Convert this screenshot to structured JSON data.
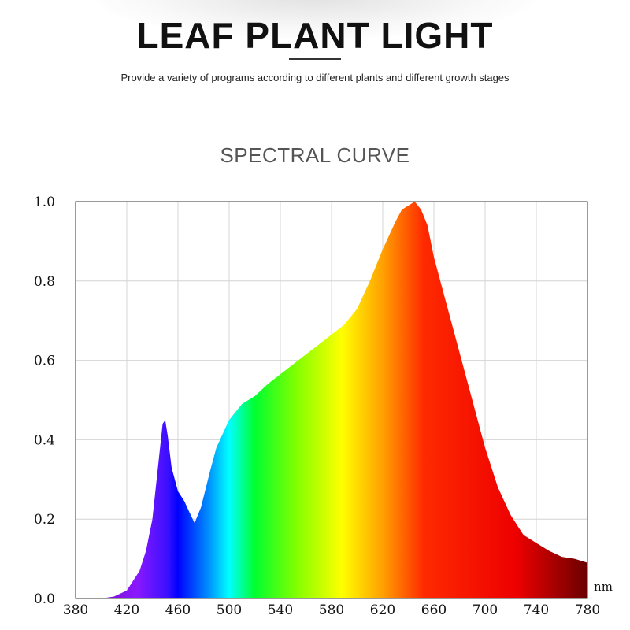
{
  "header": {
    "title": "LEAF PLANT LIGHT",
    "subtitle": "Provide a variety of programs according to different plants and different growth stages"
  },
  "section_title": "SPECTRAL CURVE",
  "chart_data": {
    "type": "area",
    "title": "",
    "xlabel": "",
    "ylabel": "",
    "x_unit": "nm",
    "xlim": [
      380,
      780
    ],
    "ylim": [
      0,
      1.0
    ],
    "grid": true,
    "x_ticks": [
      380,
      420,
      460,
      500,
      540,
      580,
      620,
      660,
      700,
      740,
      780
    ],
    "x_tick_labels": [
      "380",
      "420",
      "460",
      "500",
      "540",
      "580",
      "620",
      "660",
      "700",
      "740",
      "780"
    ],
    "y_ticks": [
      0,
      0.2,
      0.4,
      0.6,
      0.8,
      1.0
    ],
    "y_tick_labels": [
      "0.0",
      "0.2",
      "0.4",
      "0.6",
      "0.8",
      "1.0"
    ],
    "fill": "visible-spectrum gradient",
    "series": [
      {
        "x": [
          380,
          400,
          410,
          420,
          430,
          435,
          440,
          445,
          448,
          450,
          452,
          455,
          460,
          465,
          470,
          473,
          478,
          485,
          490,
          500,
          510,
          520,
          530,
          540,
          550,
          560,
          570,
          580,
          590,
          600,
          610,
          620,
          630,
          635,
          640,
          645,
          650,
          655,
          660,
          670,
          680,
          690,
          700,
          710,
          720,
          730,
          740,
          750,
          760,
          770,
          780
        ],
        "y": [
          0.0,
          0.0,
          0.005,
          0.02,
          0.07,
          0.12,
          0.2,
          0.35,
          0.44,
          0.45,
          0.41,
          0.33,
          0.27,
          0.245,
          0.21,
          0.19,
          0.23,
          0.32,
          0.38,
          0.45,
          0.49,
          0.51,
          0.54,
          0.565,
          0.59,
          0.615,
          0.64,
          0.665,
          0.69,
          0.73,
          0.8,
          0.88,
          0.95,
          0.98,
          0.99,
          1.0,
          0.98,
          0.94,
          0.86,
          0.74,
          0.62,
          0.5,
          0.38,
          0.28,
          0.21,
          0.16,
          0.14,
          0.12,
          0.105,
          0.1,
          0.09
        ]
      }
    ]
  }
}
